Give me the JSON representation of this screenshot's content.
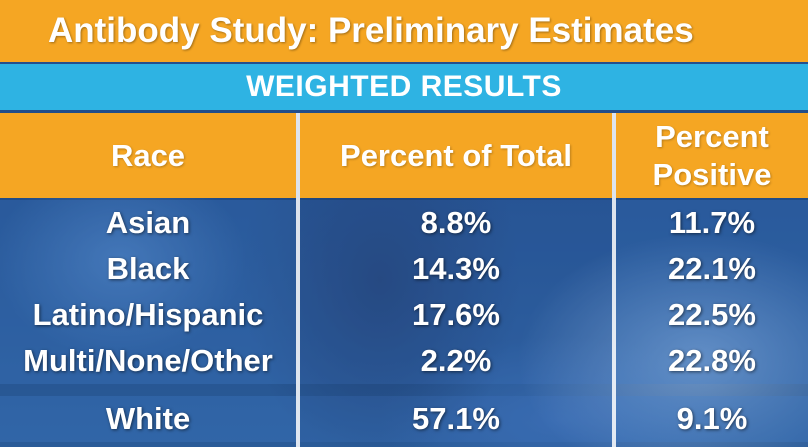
{
  "title": "Antibody Study: Preliminary Estimates",
  "subtitle": "WEIGHTED RESULTS",
  "columns": [
    "Race",
    "Percent of Total",
    "Percent Positive"
  ],
  "rows": [
    {
      "race": "Asian",
      "percent_of_total": "8.8%",
      "percent_positive": "11.7%"
    },
    {
      "race": "Black",
      "percent_of_total": "14.3%",
      "percent_positive": "22.1%"
    },
    {
      "race": "Latino/Hispanic",
      "percent_of_total": "17.6%",
      "percent_positive": "22.5%"
    },
    {
      "race": "Multi/None/Other",
      "percent_of_total": "2.2%",
      "percent_positive": "22.8%"
    },
    {
      "race": "White",
      "percent_of_total": "57.1%",
      "percent_positive": "9.1%"
    }
  ]
}
